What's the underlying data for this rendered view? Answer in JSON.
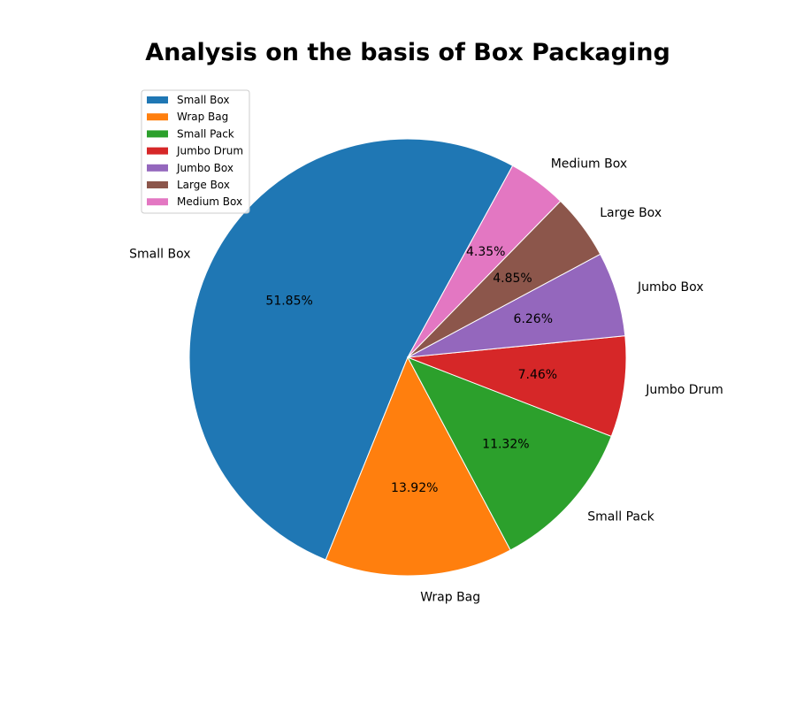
{
  "chart_data": {
    "type": "pie",
    "title": "Analysis on the basis of Box Packaging",
    "categories": [
      "Small Box",
      "Wrap Bag",
      "Small Pack",
      "Jumbo Drum",
      "Jumbo Box",
      "Large Box",
      "Medium Box"
    ],
    "values": [
      51.85,
      13.92,
      11.32,
      7.46,
      6.26,
      4.85,
      4.35
    ],
    "value_labels": [
      "51.85%",
      "13.92%",
      "11.32%",
      "7.46%",
      "6.26%",
      "4.85%",
      "4.35%"
    ],
    "colors": [
      "#1f77b4",
      "#ff7f0e",
      "#2ca02c",
      "#d62728",
      "#9467bd",
      "#8c564b",
      "#e377c2"
    ],
    "legend": {
      "placement": "top-left",
      "entries": [
        "Small Box",
        "Wrap Bag",
        "Small Pack",
        "Jumbo Drum",
        "Jumbo Box",
        "Large Box",
        "Medium Box"
      ]
    }
  }
}
